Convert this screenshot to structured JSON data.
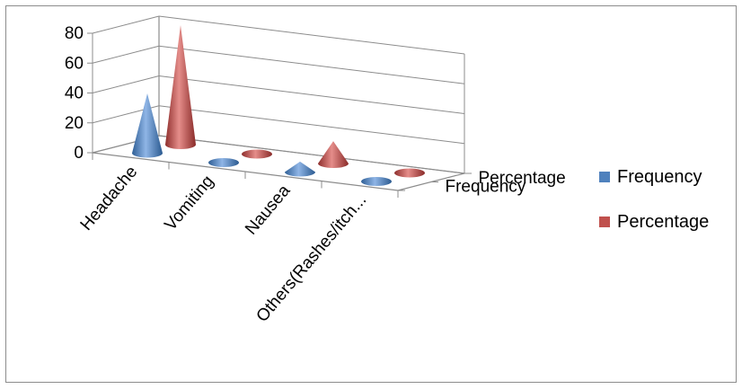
{
  "chart_data": {
    "type": "bar",
    "style": "3d-cone",
    "title": "",
    "xlabel": "",
    "ylabel": "",
    "categories": [
      "Headache",
      "Vomiting",
      "Nausea",
      "Others(Rashes/itch..."
    ],
    "series": [
      {
        "name": "Percentage",
        "values": [
          80,
          2,
          15,
          2
        ],
        "color": "#C0504D"
      },
      {
        "name": "Frequency",
        "values": [
          40,
          1,
          7,
          1
        ],
        "color": "#4F81BD"
      }
    ],
    "ylim": [
      0,
      80
    ],
    "yticks": [
      "0",
      "20",
      "40",
      "60",
      "80"
    ],
    "depth_axis_labels": [
      "Percentage",
      "Frequency"
    ],
    "grid": true,
    "legend": {
      "position": "right",
      "entries": [
        {
          "label": "Frequency",
          "color": "#4F81BD"
        },
        {
          "label": "Percentage",
          "color": "#C0504D"
        }
      ]
    }
  }
}
